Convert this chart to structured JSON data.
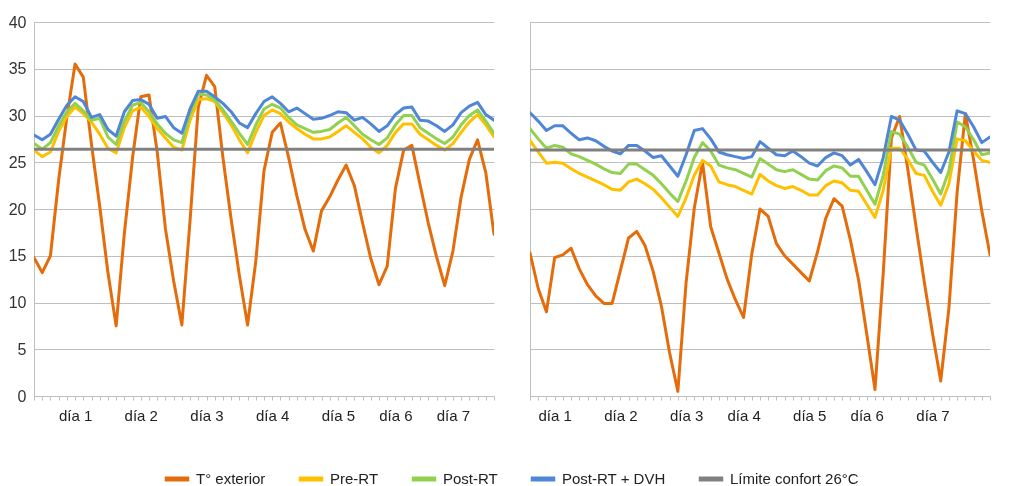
{
  "chart_data": [
    {
      "type": "line",
      "categories": [
        null,
        null,
        null,
        null,
        null,
        "día 1",
        null,
        null,
        null,
        null,
        null,
        null,
        null,
        "día 2",
        null,
        null,
        null,
        null,
        null,
        null,
        null,
        "día 3",
        null,
        null,
        null,
        null,
        null,
        null,
        null,
        "día 4",
        null,
        null,
        null,
        null,
        null,
        null,
        null,
        "día 5",
        null,
        null,
        null,
        null,
        null,
        null,
        "día 6",
        null,
        null,
        null,
        null,
        null,
        null,
        "día 7",
        null,
        null,
        null,
        null,
        null
      ],
      "ylim": [
        0,
        40
      ],
      "yticks": [
        0,
        5,
        10,
        15,
        20,
        25,
        30,
        35,
        40
      ],
      "grid": "y",
      "legend": "bottom",
      "line_style": "solid",
      "series": [
        {
          "name": "T° exterior",
          "color": "#e46c0a",
          "values": [
            14.8,
            13.2,
            15.0,
            23.1,
            29.8,
            35.5,
            34.1,
            26.9,
            20.3,
            13.2,
            7.5,
            17.4,
            25.5,
            32.0,
            32.2,
            26.1,
            17.9,
            12.3,
            7.6,
            18.8,
            30.9,
            34.3,
            33.1,
            25.5,
            18.9,
            12.9,
            7.6,
            14.4,
            24.1,
            28.2,
            29.2,
            25.5,
            21.4,
            17.8,
            15.5,
            19.8,
            21.3,
            23.1,
            24.7,
            22.5,
            18.5,
            14.7,
            11.9,
            13.9,
            22.2,
            26.3,
            26.8,
            22.6,
            18.5,
            14.9,
            11.8,
            15.5,
            21.3,
            25.3,
            27.4,
            23.9,
            17.3
          ]
        },
        {
          "name": "Pre-RT",
          "color": "#ffc000",
          "values": [
            26.3,
            25.6,
            26.1,
            28.3,
            29.9,
            30.9,
            30.2,
            29.3,
            28.0,
            26.5,
            26.0,
            28.7,
            30.5,
            30.9,
            29.9,
            28.6,
            27.6,
            26.6,
            26.3,
            29.5,
            31.7,
            31.8,
            31.5,
            30.3,
            29.0,
            27.4,
            26.0,
            28.2,
            30.0,
            30.6,
            30.2,
            29.3,
            28.6,
            28.0,
            27.5,
            27.5,
            27.7,
            28.3,
            28.9,
            28.2,
            27.5,
            26.6,
            26.0,
            26.8,
            28.2,
            29.1,
            29.1,
            28.0,
            27.4,
            26.8,
            26.3,
            27.0,
            28.2,
            29.3,
            30.1,
            29.0,
            27.7
          ]
        },
        {
          "name": "Post-RT",
          "color": "#92d050",
          "values": [
            27.0,
            26.4,
            27.1,
            28.9,
            30.4,
            31.3,
            30.5,
            29.5,
            29.7,
            27.7,
            26.9,
            29.4,
            31.1,
            31.4,
            30.4,
            29.1,
            28.1,
            27.4,
            27.1,
            30.2,
            32.3,
            32.2,
            31.7,
            30.6,
            29.4,
            28.1,
            26.9,
            29.0,
            30.7,
            31.2,
            30.8,
            29.8,
            29.0,
            28.6,
            28.2,
            28.3,
            28.5,
            29.2,
            29.8,
            28.9,
            28.0,
            27.4,
            26.9,
            27.6,
            29.0,
            30.0,
            30.0,
            28.7,
            28.1,
            27.5,
            27.0,
            27.7,
            29.0,
            30.0,
            30.6,
            29.4,
            28.1
          ]
        },
        {
          "name": "Post-RT + DVH",
          "color": "#4f86d6",
          "values": [
            27.9,
            27.4,
            28.0,
            29.6,
            31.1,
            32.0,
            31.5,
            29.8,
            30.1,
            28.5,
            27.8,
            30.4,
            31.6,
            31.7,
            31.2,
            29.7,
            29.9,
            28.7,
            28.1,
            30.7,
            32.6,
            32.6,
            32.0,
            31.3,
            30.4,
            29.2,
            28.7,
            30.2,
            31.5,
            32.0,
            31.3,
            30.4,
            30.8,
            30.2,
            29.6,
            29.7,
            30.0,
            30.4,
            30.3,
            29.5,
            29.8,
            29.1,
            28.3,
            28.9,
            30.1,
            30.8,
            30.9,
            29.5,
            29.4,
            28.9,
            28.3,
            29.0,
            30.3,
            31.0,
            31.4,
            30.1,
            29.5
          ]
        },
        {
          "name": "Límite confort 26°C",
          "color": "#808080",
          "values": [
            26.4,
            26.4,
            26.4,
            26.4,
            26.4,
            26.4,
            26.4,
            26.4,
            26.4,
            26.4,
            26.4,
            26.4,
            26.4,
            26.4,
            26.4,
            26.4,
            26.4,
            26.4,
            26.4,
            26.4,
            26.4,
            26.4,
            26.4,
            26.4,
            26.4,
            26.4,
            26.4,
            26.4,
            26.4,
            26.4,
            26.4,
            26.4,
            26.4,
            26.4,
            26.4,
            26.4,
            26.4,
            26.4,
            26.4,
            26.4,
            26.4,
            26.4,
            26.4,
            26.4,
            26.4,
            26.4,
            26.4,
            26.4,
            26.4,
            26.4,
            26.4,
            26.4,
            26.4,
            26.4,
            26.4,
            26.4,
            26.4
          ]
        }
      ]
    },
    {
      "type": "line",
      "categories": [
        null,
        null,
        null,
        "día 1",
        null,
        null,
        null,
        null,
        null,
        null,
        null,
        "día 2",
        null,
        null,
        null,
        null,
        null,
        null,
        null,
        "día 3",
        null,
        null,
        null,
        null,
        null,
        null,
        "día 4",
        null,
        null,
        null,
        null,
        null,
        null,
        null,
        "día 5",
        null,
        null,
        null,
        null,
        null,
        null,
        "día 6",
        null,
        null,
        null,
        null,
        null,
        null,
        null,
        "día 7",
        null,
        null,
        null,
        null,
        null,
        null,
        null
      ],
      "ylim": [
        0,
        40
      ],
      "yticks": [
        0,
        5,
        10,
        15,
        20,
        25,
        30,
        35,
        40
      ],
      "tick_labels": "x",
      "grid": "y",
      "line_style": "solid",
      "series": [
        {
          "color": "#e46c0a",
          "values": [
            15.3,
            11.5,
            9.0,
            14.8,
            15.1,
            15.8,
            13.6,
            11.9,
            10.7,
            9.9,
            9.9,
            13.4,
            16.9,
            17.6,
            16.1,
            13.3,
            9.6,
            4.6,
            0.5,
            12.1,
            20.1,
            25.0,
            18.1,
            15.3,
            12.5,
            10.3,
            8.4,
            15.2,
            20.0,
            19.2,
            16.3,
            15.0,
            14.1,
            13.2,
            12.3,
            15.4,
            19.0,
            21.1,
            20.3,
            16.7,
            12.4,
            6.6,
            0.7,
            13.1,
            27.6,
            29.9,
            24.2,
            18.1,
            12.2,
            6.7,
            1.6,
            9.4,
            21.8,
            30.2,
            25.3,
            19.8,
            15.1
          ]
        },
        {
          "color": "#ffc000",
          "values": [
            27.3,
            26.1,
            24.9,
            25.0,
            24.9,
            24.3,
            23.8,
            23.4,
            23.0,
            22.6,
            22.1,
            22.0,
            22.9,
            23.2,
            22.7,
            22.1,
            21.2,
            20.2,
            19.2,
            21.2,
            23.6,
            25.2,
            24.6,
            22.9,
            22.6,
            22.4,
            22.0,
            21.6,
            23.7,
            23.0,
            22.5,
            22.2,
            22.4,
            22.0,
            21.5,
            21.5,
            22.5,
            23.0,
            22.8,
            22.0,
            21.9,
            20.5,
            19.1,
            22.0,
            26.5,
            26.5,
            25.3,
            23.8,
            23.6,
            21.9,
            20.4,
            22.7,
            27.5,
            27.3,
            26.2,
            25.2,
            25.0
          ]
        },
        {
          "color": "#92d050",
          "values": [
            28.6,
            27.5,
            26.5,
            26.8,
            26.6,
            25.9,
            25.6,
            25.2,
            24.8,
            24.3,
            23.9,
            23.8,
            24.8,
            24.8,
            24.2,
            23.6,
            22.7,
            21.7,
            20.8,
            23.0,
            25.5,
            27.1,
            26.2,
            24.7,
            24.4,
            24.2,
            23.8,
            23.4,
            25.4,
            24.8,
            24.2,
            24.0,
            24.2,
            23.7,
            23.2,
            23.1,
            24.1,
            24.6,
            24.4,
            23.5,
            23.5,
            22.0,
            20.5,
            23.6,
            28.3,
            28.0,
            26.6,
            25.0,
            24.7,
            23.2,
            21.6,
            24.1,
            29.3,
            28.8,
            27.4,
            25.8,
            26.0
          ]
        },
        {
          "color": "#4f86d6",
          "values": [
            30.3,
            29.4,
            28.4,
            28.9,
            28.9,
            28.1,
            27.4,
            27.6,
            27.3,
            26.7,
            26.2,
            25.9,
            26.8,
            26.8,
            26.2,
            25.5,
            25.7,
            24.6,
            23.5,
            25.8,
            28.4,
            28.6,
            27.5,
            26.1,
            25.8,
            25.6,
            25.4,
            25.6,
            27.2,
            26.5,
            25.8,
            25.7,
            26.2,
            25.6,
            24.9,
            24.6,
            25.5,
            26.0,
            25.7,
            24.7,
            25.3,
            24.0,
            22.6,
            25.5,
            29.9,
            29.5,
            28.0,
            26.3,
            26.2,
            25.0,
            23.9,
            26.1,
            30.5,
            30.2,
            28.8,
            27.1,
            27.7
          ]
        },
        {
          "color": "#808080",
          "values": [
            26.3,
            26.3,
            26.3,
            26.3,
            26.3,
            26.3,
            26.3,
            26.3,
            26.3,
            26.3,
            26.3,
            26.3,
            26.3,
            26.3,
            26.3,
            26.3,
            26.3,
            26.3,
            26.3,
            26.3,
            26.3,
            26.3,
            26.3,
            26.3,
            26.3,
            26.3,
            26.3,
            26.3,
            26.3,
            26.3,
            26.3,
            26.3,
            26.3,
            26.3,
            26.3,
            26.3,
            26.3,
            26.3,
            26.3,
            26.3,
            26.3,
            26.3,
            26.3,
            26.3,
            26.3,
            26.3,
            26.3,
            26.3,
            26.3,
            26.3,
            26.3,
            26.3,
            26.3,
            26.3,
            26.3,
            26.3,
            26.3
          ]
        }
      ]
    }
  ]
}
